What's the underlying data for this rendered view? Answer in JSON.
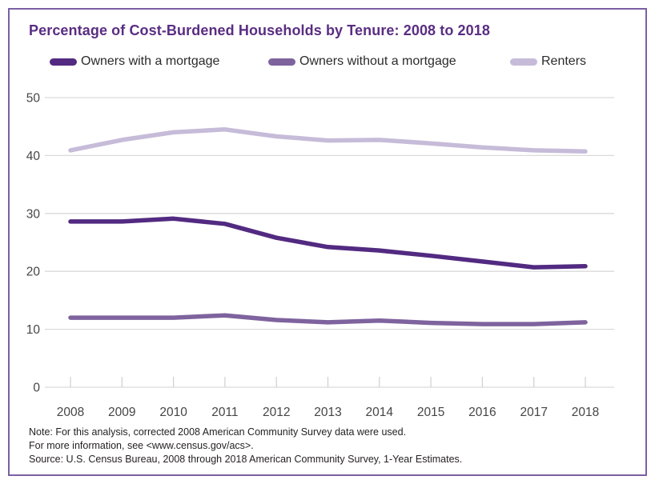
{
  "title": "Percentage of Cost-Burdened Households by Tenure: 2008 to 2018",
  "chart_data": {
    "type": "line",
    "title": "Percentage of Cost-Burdened Households by Tenure: 2008 to 2018",
    "categories": [
      "2008",
      "2009",
      "2010",
      "2011",
      "2012",
      "2013",
      "2014",
      "2015",
      "2016",
      "2017",
      "2018"
    ],
    "series": [
      {
        "name": "Owners with a mortgage",
        "color": "#522a81",
        "values": [
          28.6,
          28.6,
          29.1,
          28.2,
          25.8,
          24.2,
          23.6,
          22.7,
          21.7,
          20.7,
          20.9
        ]
      },
      {
        "name": "Owners without a mortgage",
        "color": "#7e639e",
        "values": [
          12.0,
          12.0,
          12.0,
          12.4,
          11.6,
          11.2,
          11.5,
          11.1,
          10.9,
          10.9,
          11.2
        ]
      },
      {
        "name": "Renters",
        "color": "#c6bcd9",
        "values": [
          40.9,
          42.7,
          44.0,
          44.5,
          43.3,
          42.6,
          42.7,
          42.1,
          41.4,
          40.9,
          40.7
        ]
      }
    ],
    "xlabel": "",
    "ylabel": "",
    "ylim": [
      0,
      50
    ],
    "yticks": [
      0,
      10,
      20,
      30,
      40,
      50
    ],
    "grid": true,
    "legend_position": "top"
  },
  "notes": {
    "note": "Note: For this analysis, corrected 2008 American Community Survey data were used.",
    "more_info": "For more information, see <www.census.gov/acs>.",
    "source": "Source: U.S. Census Bureau, 2008 through 2018 American Community Survey, 1-Year Estimates."
  },
  "colors": {
    "title": "#5a2d82",
    "border": "#7b5fa3",
    "axis_text": "#454545",
    "gridline": "#dadada",
    "tick": "#cfcfcf",
    "note_text": "#231f20",
    "background": "#ffffff"
  }
}
